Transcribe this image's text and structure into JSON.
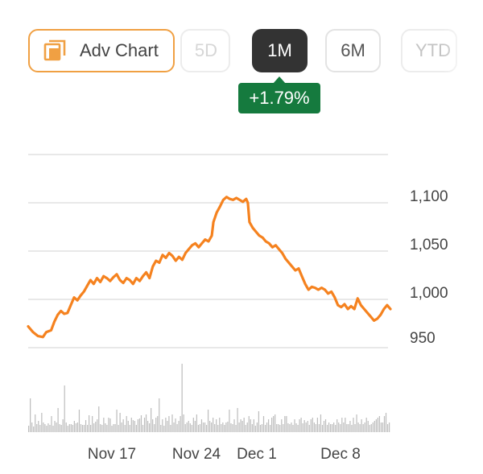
{
  "toolbar": {
    "adv_chart_label": "Adv Chart",
    "ranges": [
      {
        "label": "5D",
        "selected": false
      },
      {
        "label": "1M",
        "selected": true
      },
      {
        "label": "6M",
        "selected": false
      },
      {
        "label": "YTD",
        "selected": false
      }
    ]
  },
  "change_badge": "+1.79%",
  "colors": {
    "line": "#f5821f",
    "accent_border": "#f0a043",
    "selected_bg": "#333333",
    "change_positive": "#157a3e",
    "volume": "#bdbdbd",
    "grid": "#e0e0e0"
  },
  "chart_data": {
    "type": "line",
    "title": "",
    "xlabel": "",
    "ylabel": "",
    "ylim": [
      930,
      1120
    ],
    "y_ticks": [
      1100,
      1050,
      1000,
      950
    ],
    "y_tick_labels": [
      "1,100",
      "1,050",
      "1,000",
      "950"
    ],
    "x_tick_labels": [
      "Nov 17",
      "Nov 24",
      "Dec 1",
      "Dec 8"
    ],
    "grid": true,
    "series": [
      {
        "points": [
          [
            0,
            972
          ],
          [
            3,
            966
          ],
          [
            6,
            962
          ],
          [
            9,
            961
          ],
          [
            11,
            966
          ],
          [
            14,
            968
          ],
          [
            16,
            977
          ],
          [
            18,
            984
          ],
          [
            20,
            988
          ],
          [
            22,
            985
          ],
          [
            24,
            986
          ],
          [
            26,
            994
          ],
          [
            28,
            1002
          ],
          [
            30,
            999
          ],
          [
            32,
            1004
          ],
          [
            34,
            1008
          ],
          [
            36,
            1014
          ],
          [
            38,
            1020
          ],
          [
            40,
            1016
          ],
          [
            42,
            1022
          ],
          [
            44,
            1018
          ],
          [
            46,
            1024
          ],
          [
            48,
            1022
          ],
          [
            50,
            1019
          ],
          [
            52,
            1023
          ],
          [
            54,
            1026
          ],
          [
            56,
            1020
          ],
          [
            58,
            1017
          ],
          [
            60,
            1022
          ],
          [
            62,
            1020
          ],
          [
            64,
            1016
          ],
          [
            66,
            1022
          ],
          [
            68,
            1019
          ],
          [
            70,
            1024
          ],
          [
            72,
            1028
          ],
          [
            74,
            1022
          ],
          [
            76,
            1034
          ],
          [
            78,
            1040
          ],
          [
            80,
            1038
          ],
          [
            82,
            1046
          ],
          [
            84,
            1043
          ],
          [
            86,
            1048
          ],
          [
            88,
            1045
          ],
          [
            90,
            1040
          ],
          [
            92,
            1044
          ],
          [
            94,
            1041
          ],
          [
            96,
            1048
          ],
          [
            98,
            1052
          ],
          [
            100,
            1056
          ],
          [
            102,
            1058
          ],
          [
            104,
            1054
          ],
          [
            106,
            1058
          ],
          [
            108,
            1062
          ],
          [
            110,
            1060
          ],
          [
            112,
            1066
          ],
          [
            113,
            1080
          ],
          [
            115,
            1090
          ],
          [
            117,
            1096
          ],
          [
            119,
            1103
          ],
          [
            121,
            1106
          ],
          [
            123,
            1104
          ],
          [
            125,
            1103
          ],
          [
            127,
            1105
          ],
          [
            129,
            1103
          ],
          [
            131,
            1101
          ],
          [
            133,
            1104
          ],
          [
            134,
            1100
          ],
          [
            135,
            1080
          ],
          [
            137,
            1074
          ],
          [
            139,
            1070
          ],
          [
            141,
            1066
          ],
          [
            143,
            1064
          ],
          [
            145,
            1060
          ],
          [
            147,
            1058
          ],
          [
            149,
            1054
          ],
          [
            151,
            1056
          ],
          [
            153,
            1052
          ],
          [
            155,
            1048
          ],
          [
            157,
            1042
          ],
          [
            159,
            1038
          ],
          [
            161,
            1034
          ],
          [
            163,
            1030
          ],
          [
            165,
            1032
          ],
          [
            167,
            1024
          ],
          [
            169,
            1016
          ],
          [
            171,
            1010
          ],
          [
            173,
            1013
          ],
          [
            175,
            1012
          ],
          [
            177,
            1010
          ],
          [
            179,
            1012
          ],
          [
            181,
            1010
          ],
          [
            183,
            1006
          ],
          [
            185,
            1008
          ],
          [
            187,
            1002
          ],
          [
            189,
            994
          ],
          [
            191,
            992
          ],
          [
            193,
            995
          ],
          [
            195,
            990
          ],
          [
            197,
            993
          ],
          [
            199,
            990
          ],
          [
            201,
            1001
          ],
          [
            203,
            994
          ],
          [
            205,
            990
          ],
          [
            207,
            986
          ],
          [
            209,
            982
          ],
          [
            211,
            978
          ],
          [
            213,
            980
          ],
          [
            215,
            984
          ],
          [
            217,
            990
          ],
          [
            219,
            994
          ],
          [
            221,
            990
          ]
        ]
      }
    ],
    "volume": [
      8,
      42,
      12,
      7,
      22,
      10,
      14,
      9,
      24,
      12,
      10,
      8,
      11,
      9,
      20,
      8,
      14,
      12,
      30,
      10,
      9,
      16,
      58,
      12,
      8,
      10,
      10,
      9,
      14,
      11,
      12,
      28,
      10,
      9,
      9,
      15,
      9,
      21,
      9,
      20,
      11,
      13,
      16,
      32,
      10,
      9,
      18,
      11,
      9,
      18,
      17,
      8,
      10,
      10,
      28,
      9,
      24,
      12,
      16,
      9,
      20,
      14,
      9,
      18,
      15,
      14,
      9,
      16,
      17,
      21,
      9,
      18,
      22,
      14,
      11,
      30,
      16,
      10,
      18,
      20,
      42,
      9,
      16,
      8,
      18,
      14,
      20,
      9,
      22,
      12,
      17,
      10,
      14,
      20,
      85,
      22,
      10,
      12,
      14,
      11,
      9,
      18,
      14,
      22,
      9,
      10,
      16,
      12,
      12,
      9,
      28,
      14,
      12,
      18,
      10,
      16,
      9,
      18,
      10,
      12,
      9,
      12,
      13,
      28,
      11,
      10,
      16,
      9,
      30,
      12,
      16,
      14,
      18,
      9,
      12,
      20,
      16,
      10,
      16,
      8,
      12,
      26,
      9,
      10,
      20,
      9,
      12,
      16,
      9,
      18,
      20,
      22,
      10,
      10,
      9,
      16,
      10,
      20,
      20,
      11,
      10,
      12,
      9,
      16,
      11,
      9,
      16,
      18,
      11,
      15,
      12,
      14,
      9,
      16,
      18,
      12,
      10,
      18,
      10,
      22,
      9,
      14,
      16,
      9,
      12,
      10,
      10,
      12,
      9,
      16,
      12,
      10,
      18,
      12,
      18,
      10,
      10,
      14,
      9,
      18,
      10,
      22,
      12,
      10,
      16,
      10,
      12,
      18,
      14,
      9,
      10,
      12,
      14,
      16,
      18,
      20,
      12,
      12,
      20,
      24,
      10,
      12
    ]
  }
}
